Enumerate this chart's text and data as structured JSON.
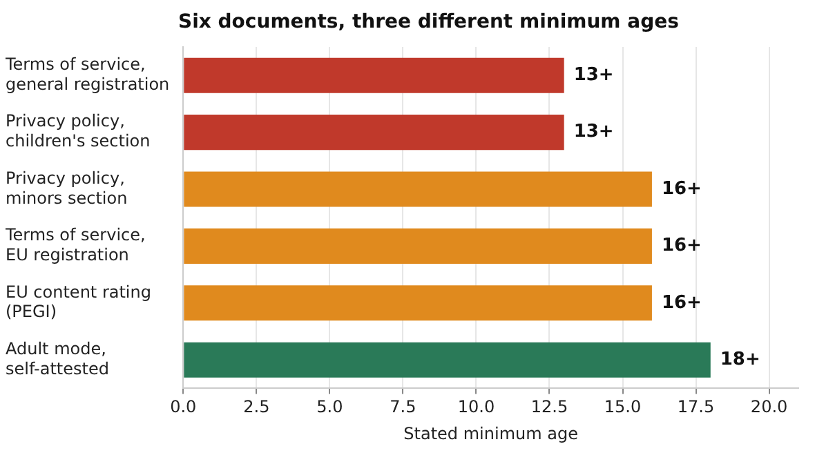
{
  "chart_data": {
    "type": "bar",
    "orientation": "horizontal",
    "title": "Six documents, three different minimum ages",
    "xlabel": "Stated minimum age",
    "categories": [
      "Terms of service,\ngeneral registration",
      "Privacy policy,\nchildren's section",
      "Privacy policy,\nminors section",
      "Terms of service,\nEU registration",
      "EU content rating\n(PEGI)",
      "Adult mode,\nself-attested"
    ],
    "values": [
      13,
      13,
      16,
      16,
      16,
      18
    ],
    "colors": [
      "#c0392b",
      "#c0392b",
      "#e08a1e",
      "#e08a1e",
      "#e08a1e",
      "#2a7a58"
    ],
    "value_labels": [
      "13+",
      "13+",
      "16+",
      "16+",
      "16+",
      "18+"
    ],
    "xlim": [
      0,
      21
    ],
    "xticks": [
      {
        "value": 0,
        "label": "0.0"
      },
      {
        "value": 2.5,
        "label": "2.5"
      },
      {
        "value": 5,
        "label": "5.0"
      },
      {
        "value": 7.5,
        "label": "7.5"
      },
      {
        "value": 10,
        "label": "10.0"
      },
      {
        "value": 12.5,
        "label": "12.5"
      },
      {
        "value": 15,
        "label": "15.0"
      },
      {
        "value": 17.5,
        "label": "17.5"
      },
      {
        "value": 20,
        "label": "20.0"
      }
    ],
    "grid": "x",
    "legend": false
  }
}
